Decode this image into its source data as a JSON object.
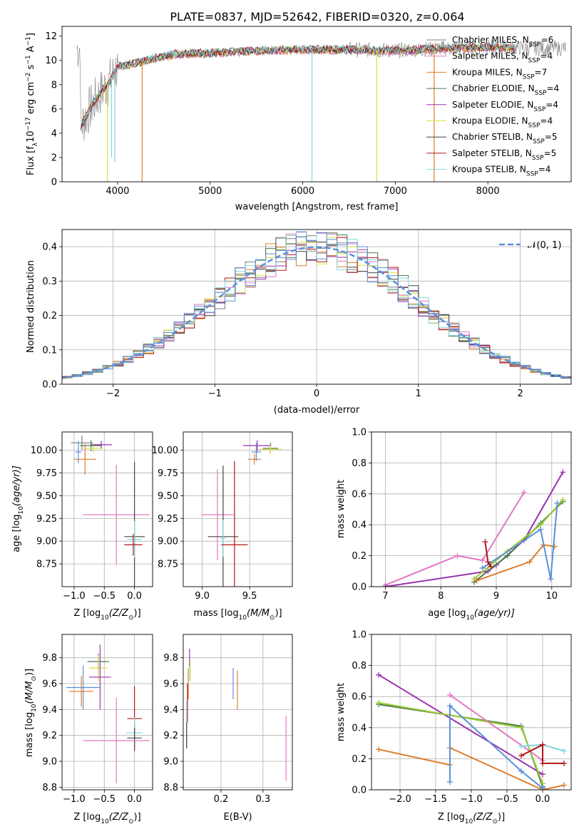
{
  "page": {
    "title": "PLATE=0837, MJD=52642, FIBERID=0320, z=0.064"
  },
  "colors": {
    "chabrier_miles": "#7f7f7f",
    "salpeter_miles": "#e377c2",
    "kroupa_miles": "#dd7d2d",
    "chabrier_elodie": "#4a7a4a",
    "salpeter_elodie": "#9a32b0",
    "kroupa_elodie": "#dde040",
    "chabrier_stelib": "#444444",
    "salpeter_stelib": "#b01515",
    "kroupa_stelib": "#7fd8df",
    "normal": "#5b8fd9",
    "greenish": "#9acd32"
  },
  "chart_data": [
    {
      "id": "spectrum",
      "type": "line",
      "title": "PLATE=0837, MJD=52642, FIBERID=0320, z=0.064",
      "xlabel": "wavelength [Angstrom, rest frame]",
      "ylabel": "Flux [f",
      "ylabel_parts": [
        "Flux [f",
        "λ",
        "10",
        "−17",
        " erg cm",
        "−2",
        " s",
        "−1",
        " A",
        "−1",
        "]"
      ],
      "xlim": [
        3400,
        8900
      ],
      "ylim": [
        0,
        12.8
      ],
      "xticks": [
        4000,
        5000,
        6000,
        7000,
        8000
      ],
      "yticks": [
        0,
        2,
        4,
        6,
        8,
        10,
        12
      ],
      "grid": false,
      "legend_position": "right",
      "series": [
        {
          "name": "Chabrier MILES, N",
          "sub": "SSP",
          "suffix": "=6",
          "color": "#7f7f7f"
        },
        {
          "name": "Salpeter MILES, N",
          "sub": "SSP",
          "suffix": "=4",
          "color": "#e377c2"
        },
        {
          "name": "Kroupa MILES, N",
          "sub": "SSP",
          "suffix": "=7",
          "color": "#dd7d2d"
        },
        {
          "name": "Chabrier ELODIE, N",
          "sub": "SSP",
          "suffix": "=4",
          "color": "#4a7a4a"
        },
        {
          "name": "Salpeter ELODIE, N",
          "sub": "SSP",
          "suffix": "=4",
          "color": "#9a32b0"
        },
        {
          "name": "Kroupa ELODIE, N",
          "sub": "SSP",
          "suffix": "=4",
          "color": "#dde040"
        },
        {
          "name": "Chabrier STELIB, N",
          "sub": "SSP",
          "suffix": "=5",
          "color": "#444444"
        },
        {
          "name": "Salpeter STELIB, N",
          "sub": "SSP",
          "suffix": "=5",
          "color": "#b01515"
        },
        {
          "name": "Kroupa STELIB, N",
          "sub": "SSP",
          "suffix": "=4",
          "color": "#7fd8df"
        }
      ],
      "continuum": {
        "x": [
          3600,
          3700,
          3800,
          3900,
          4000,
          4200,
          4400,
          4600,
          4800,
          5000,
          5200,
          5500,
          6000,
          6500,
          7000,
          7500,
          8000,
          8500
        ],
        "y": [
          4.5,
          6.0,
          7.2,
          8.1,
          9.5,
          9.8,
          10.2,
          10.5,
          10.6,
          10.6,
          10.7,
          10.8,
          10.9,
          10.9,
          10.8,
          11.0,
          11.1,
          11.0
        ]
      },
      "dips": [
        {
          "x": 3935,
          "y": 2.0,
          "color": "#7fd8df"
        },
        {
          "x": 3970,
          "y": 1.6,
          "color": "#7fd8df"
        },
        {
          "x": 3890,
          "y": 0.0,
          "color": "#dde040"
        },
        {
          "x": 4265,
          "y": 0.0,
          "color": "#dd7d2d"
        },
        {
          "x": 6100,
          "y": 0.0,
          "color": "#7fd8df"
        },
        {
          "x": 6800,
          "y": 0.0,
          "color": "#dde040"
        },
        {
          "x": 7420,
          "y": 0.0,
          "color": "#dd7d2d"
        }
      ]
    },
    {
      "id": "residuals",
      "type": "histogram",
      "xlabel": "(data-model)/error",
      "ylabel": "Normed distribution",
      "xlim": [
        -2.5,
        2.5
      ],
      "ylim": [
        0,
        0.45
      ],
      "xticks": [
        -2,
        -1,
        0,
        1,
        2
      ],
      "yticks": [
        0.0,
        0.1,
        0.2,
        0.3,
        0.4
      ],
      "grid": true,
      "legend_position": "upper right",
      "legend": "𝒩(0, 1)",
      "bin_width": 0.1,
      "series_colors": [
        "#7f7f7f",
        "#e377c2",
        "#dd7d2d",
        "#4a7a4a",
        "#9a32b0",
        "#dde040",
        "#444444",
        "#b01515",
        "#7fd8df",
        "#5b8fd9"
      ]
    },
    {
      "id": "age_vs_z",
      "type": "errorbar",
      "xlabel": "Z [log",
      "xlabel_parts": [
        "Z [log",
        "10",
        "(Z/Z",
        "⊙",
        ")]"
      ],
      "ylabel_parts": [
        "age  [log",
        "10",
        "(age/yr)]"
      ],
      "xlim": [
        -1.2,
        0.3
      ],
      "ylim": [
        8.5,
        10.2
      ],
      "xticks": [
        -1.0,
        -0.5,
        0.0
      ],
      "yticks": [
        8.75,
        9.0,
        9.25,
        9.5,
        9.75,
        10.0
      ],
      "grid": true,
      "points": [
        {
          "x": -0.87,
          "y": 10.08,
          "xerr": 0.18,
          "yerr": 0.08,
          "color": "#7f7f7f"
        },
        {
          "x": -0.72,
          "y": 10.05,
          "xerr": 0.18,
          "yerr": 0.06,
          "color": "#4a7a4a"
        },
        {
          "x": -0.68,
          "y": 10.02,
          "xerr": 0.15,
          "yerr": 0.05,
          "color": "#dde040"
        },
        {
          "x": -0.55,
          "y": 10.06,
          "xerr": 0.18,
          "yerr": 0.04,
          "color": "#9a32b0"
        },
        {
          "x": -0.82,
          "y": 9.9,
          "xerr": 0.18,
          "yerr": 0.17,
          "color": "#dd7d2d"
        },
        {
          "x": -0.93,
          "y": 9.98,
          "xerr": 0.05,
          "yerr": 0.12,
          "color": "#5b8fd9"
        },
        {
          "x": -0.3,
          "y": 9.29,
          "xerr": 0.55,
          "yerr": 0.55,
          "color": "#e377c2"
        },
        {
          "x": 0.0,
          "y": 9.05,
          "xerr": 0.17,
          "yerr": 0.82,
          "color": "#444444"
        },
        {
          "x": 0.0,
          "y": 9.02,
          "xerr": 0.12,
          "yerr": 0.2,
          "color": "#7fd8df"
        },
        {
          "x": -0.02,
          "y": 8.96,
          "xerr": 0.15,
          "yerr": 0.12,
          "color": "#b01515"
        }
      ]
    },
    {
      "id": "age_vs_mass",
      "type": "errorbar",
      "xlabel_parts": [
        "mass [log",
        "10",
        "(M/M",
        "⊙",
        ")]"
      ],
      "xlim": [
        8.8,
        9.95
      ],
      "ylim": [
        8.5,
        10.2
      ],
      "xticks": [
        9.0,
        9.5
      ],
      "yticks": [
        8.75,
        9.0,
        9.25,
        9.5,
        9.75,
        10.0
      ],
      "grid": true,
      "points": [
        {
          "x": 9.58,
          "y": 10.05,
          "xerr": 0.15,
          "yerr": 0.06,
          "color": "#9a32b0"
        },
        {
          "x": 9.72,
          "y": 10.02,
          "xerr": 0.08,
          "yerr": 0.06,
          "color": "#4a7a4a"
        },
        {
          "x": 9.72,
          "y": 10.01,
          "xerr": 0.12,
          "yerr": 0.05,
          "color": "#dde040"
        },
        {
          "x": 9.55,
          "y": 9.9,
          "xerr": 0.07,
          "yerr": 0.06,
          "color": "#dd7d2d"
        },
        {
          "x": 9.57,
          "y": 9.98,
          "xerr": 0.05,
          "yerr": 0.1,
          "color": "#5b8fd9"
        },
        {
          "x": 9.16,
          "y": 9.29,
          "xerr": 0.17,
          "yerr": 0.5,
          "color": "#e377c2"
        },
        {
          "x": 9.22,
          "y": 9.05,
          "xerr": 0.16,
          "yerr": 0.78,
          "color": "#444444"
        },
        {
          "x": 9.22,
          "y": 9.03,
          "xerr": 0.03,
          "yerr": 0.2,
          "color": "#7fd8df"
        },
        {
          "x": 9.34,
          "y": 8.96,
          "xerr": 0.14,
          "yerr": 0.92,
          "color": "#b01515"
        }
      ]
    },
    {
      "id": "weight_vs_age",
      "type": "line",
      "xlabel_parts": [
        "age  [log",
        "10",
        "(age/yr)]"
      ],
      "ylabel": "mass weight",
      "xlim": [
        6.75,
        10.35
      ],
      "ylim": [
        0.0,
        1.0
      ],
      "xticks": [
        7,
        8,
        9,
        10
      ],
      "yticks": [
        0.0,
        0.2,
        0.4,
        0.6,
        0.8,
        1.0
      ],
      "grid": true,
      "series": [
        {
          "color": "#e377c2",
          "x": [
            7.0,
            8.3,
            8.75,
            9.5
          ],
          "y": [
            0.01,
            0.2,
            0.17,
            0.61
          ]
        },
        {
          "color": "#9a32b0",
          "x": [
            7.0,
            8.85,
            9.0,
            9.5,
            10.2
          ],
          "y": [
            0.0,
            0.1,
            0.14,
            0.3,
            0.74
          ]
        },
        {
          "color": "#4a7a4a",
          "x": [
            8.6,
            9.2,
            9.8,
            10.2
          ],
          "y": [
            0.03,
            0.2,
            0.41,
            0.55
          ]
        },
        {
          "color": "#9acd32",
          "x": [
            8.6,
            9.2,
            9.8,
            10.2
          ],
          "y": [
            0.05,
            0.23,
            0.4,
            0.56
          ]
        },
        {
          "color": "#dd7d2d",
          "x": [
            8.65,
            9.6,
            9.85,
            10.05
          ],
          "y": [
            0.04,
            0.16,
            0.27,
            0.26
          ]
        },
        {
          "color": "#5b8fd9",
          "x": [
            8.75,
            9.8,
            9.98,
            10.1
          ],
          "y": [
            0.12,
            0.37,
            0.05,
            0.54
          ]
        },
        {
          "color": "#b01515",
          "x": [
            8.8,
            8.85,
            8.9
          ],
          "y": [
            0.29,
            0.16,
            0.13
          ]
        }
      ]
    },
    {
      "id": "mass_vs_z",
      "type": "errorbar",
      "xlabel_parts": [
        "Z [log",
        "10",
        "(Z/Z",
        "⊙",
        ")]"
      ],
      "ylabel_parts": [
        "mass [log",
        "10",
        "(M/M",
        "⊙",
        ")]"
      ],
      "xlim": [
        -1.2,
        0.3
      ],
      "ylim": [
        8.78,
        9.98
      ],
      "xticks": [
        -1.0,
        -0.5,
        0.0
      ],
      "yticks": [
        8.8,
        9.0,
        9.2,
        9.4,
        9.6,
        9.8
      ],
      "grid": true,
      "points": [
        {
          "x": -0.6,
          "y": 9.77,
          "xerr": 0.18,
          "yerr": 0.06,
          "color": "#4a7a4a"
        },
        {
          "x": -0.6,
          "y": 9.72,
          "xerr": 0.15,
          "yerr": 0.1,
          "color": "#dde040"
        },
        {
          "x": -0.57,
          "y": 9.65,
          "xerr": 0.18,
          "yerr": 0.25,
          "color": "#9a32b0"
        },
        {
          "x": -0.85,
          "y": 9.57,
          "xerr": 0.28,
          "yerr": 0.17,
          "color": "#5b8fd9"
        },
        {
          "x": -0.88,
          "y": 9.54,
          "xerr": 0.2,
          "yerr": 0.12,
          "color": "#dd7d2d"
        },
        {
          "x": 0.0,
          "y": 9.33,
          "xerr": 0.12,
          "yerr": 0.25,
          "color": "#b01515"
        },
        {
          "x": 0.0,
          "y": 9.22,
          "xerr": 0.14,
          "yerr": 0.12,
          "color": "#7fd8df"
        },
        {
          "x": 0.0,
          "y": 9.18,
          "xerr": 0.12,
          "yerr": 0.08,
          "color": "#444444"
        },
        {
          "x": -0.3,
          "y": 9.16,
          "xerr": 0.55,
          "yerr": 0.33,
          "color": "#e377c2"
        }
      ]
    },
    {
      "id": "mass_vs_ebv",
      "type": "errorbar",
      "xlabel": "E(B-V)",
      "xlim": [
        0.11,
        0.37
      ],
      "ylim": [
        8.78,
        9.98
      ],
      "xticks": [
        0.2,
        0.3
      ],
      "yticks": [
        8.8,
        9.0,
        9.2,
        9.4,
        9.6,
        9.8
      ],
      "grid": true,
      "points": [
        {
          "x": 0.125,
          "y": 9.8,
          "xerr": 0.0,
          "yerr": 0.07,
          "color": "#9a32b0"
        },
        {
          "x": 0.126,
          "y": 9.7,
          "xerr": 0.0,
          "yerr": 0.08,
          "color": "#9acd32"
        },
        {
          "x": 0.122,
          "y": 9.6,
          "xerr": 0.0,
          "yerr": 0.12,
          "color": "#dd7d2d"
        },
        {
          "x": 0.12,
          "y": 9.45,
          "xerr": 0.0,
          "yerr": 0.15,
          "color": "#b01515"
        },
        {
          "x": 0.118,
          "y": 9.28,
          "xerr": 0.0,
          "yerr": 0.18,
          "color": "#7fd8df"
        },
        {
          "x": 0.118,
          "y": 9.2,
          "xerr": 0.0,
          "yerr": 0.1,
          "color": "#444444"
        },
        {
          "x": 0.229,
          "y": 9.6,
          "xerr": 0.0,
          "yerr": 0.12,
          "color": "#5b8fd9"
        },
        {
          "x": 0.239,
          "y": 9.55,
          "xerr": 0.0,
          "yerr": 0.15,
          "color": "#dd7d2d"
        },
        {
          "x": 0.355,
          "y": 9.1,
          "xerr": 0.0,
          "yerr": 0.25,
          "color": "#e377c2"
        }
      ]
    },
    {
      "id": "weight_vs_z",
      "type": "line",
      "xlabel_parts": [
        "Z [log",
        "10",
        "(Z/Z",
        "⊙",
        ")]"
      ],
      "ylabel": "mass weight",
      "xlim": [
        -2.4,
        0.4
      ],
      "ylim": [
        0.0,
        1.0
      ],
      "xticks": [
        -2.0,
        -1.5,
        -1.0,
        -0.5,
        0.0
      ],
      "yticks": [
        0.0,
        0.2,
        0.4,
        0.6,
        0.8,
        1.0
      ],
      "grid": true,
      "series": [
        {
          "color": "#9a32b0",
          "x": [
            -2.3,
            0.0
          ],
          "y": [
            0.74,
            0.1
          ]
        },
        {
          "color": "#4a7a4a",
          "x": [
            -2.3,
            -0.3,
            0.0
          ],
          "y": [
            0.55,
            0.41,
            0.02
          ]
        },
        {
          "color": "#9acd32",
          "x": [
            -2.3,
            -0.3,
            0.0
          ],
          "y": [
            0.56,
            0.4,
            0.04
          ]
        },
        {
          "color": "#dd7d2d",
          "x": [
            -2.3,
            -1.3,
            -1.3,
            0.0,
            0.3
          ],
          "y": [
            0.26,
            0.16,
            0.27,
            0.0,
            0.03
          ]
        },
        {
          "color": "#e377c2",
          "x": [
            -1.3,
            0.0
          ],
          "y": [
            0.61,
            0.19
          ]
        },
        {
          "color": "#5b8fd9",
          "x": [
            -1.3,
            -1.3,
            -0.3,
            0.0
          ],
          "y": [
            0.05,
            0.54,
            0.12,
            0.01
          ]
        },
        {
          "color": "#7fd8df",
          "x": [
            -0.3,
            0.0,
            0.3
          ],
          "y": [
            0.28,
            0.29,
            0.25
          ]
        },
        {
          "color": "#b01515",
          "x": [
            -0.3,
            0.0,
            0.0,
            0.3
          ],
          "y": [
            0.22,
            0.29,
            0.17,
            0.17
          ]
        }
      ]
    }
  ]
}
